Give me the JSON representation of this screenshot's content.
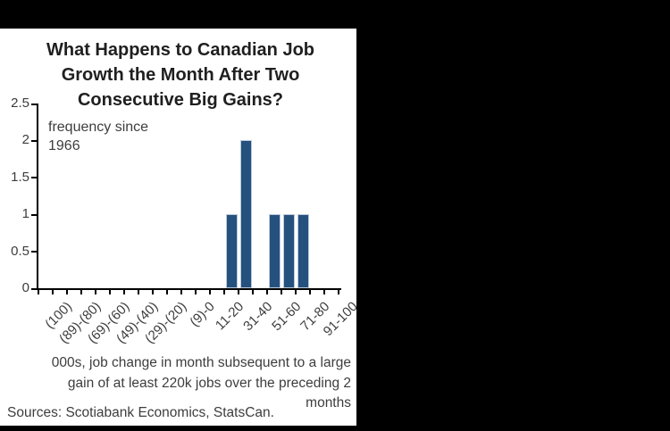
{
  "page": {
    "background_color": "#000000",
    "panel_background_color": "#ffffff"
  },
  "chart_data": {
    "type": "bar",
    "title": "What Happens to Canadian Job Growth the Month After Two Consecutive Big Gains?",
    "title_lines": "What Happens to Canadian Job\nGrowth the Month After Two\nConsecutive Big Gains?",
    "annotation": "frequency since\n1966",
    "xlabel": "",
    "ylabel": "",
    "ylim": [
      0,
      2.5
    ],
    "yticks": [
      2.5,
      2,
      1.5,
      1,
      0.5,
      0
    ],
    "ytick_labels": [
      "2.5",
      "2",
      "1.5",
      "1",
      "0.5",
      "0"
    ],
    "num_bins": 21,
    "xtick_labels": [
      "(100)",
      "(89)-(80)",
      "(69)-(60)",
      "(49)-(40)",
      "(29)-(20)",
      "(9)-0",
      "11-20",
      "31-40",
      "51-60",
      "71-80",
      "91-100"
    ],
    "xtick_label_bins": [
      0,
      2,
      4,
      6,
      8,
      10,
      12,
      14,
      16,
      18,
      20
    ],
    "bars": [
      {
        "bin": 13,
        "label": "21-30",
        "value": 1
      },
      {
        "bin": 14,
        "label": "31-40",
        "value": 2
      },
      {
        "bin": 16,
        "label": "51-60",
        "value": 1
      },
      {
        "bin": 17,
        "label": "61-70",
        "value": 1
      },
      {
        "bin": 18,
        "label": "71-80",
        "value": 1
      }
    ],
    "bar_color": "#25517e",
    "bar_border_color": "#bdc9da",
    "axis_color": "#000000",
    "text_color": "#3d3d3d",
    "grid": "off",
    "legend": "none",
    "footnote": "000s, job change in month subsequent to a large\ngain of at least 220k jobs over the preceding 2\nmonths",
    "sources": "Sources: Scotiabank Economics, StatsCan."
  }
}
